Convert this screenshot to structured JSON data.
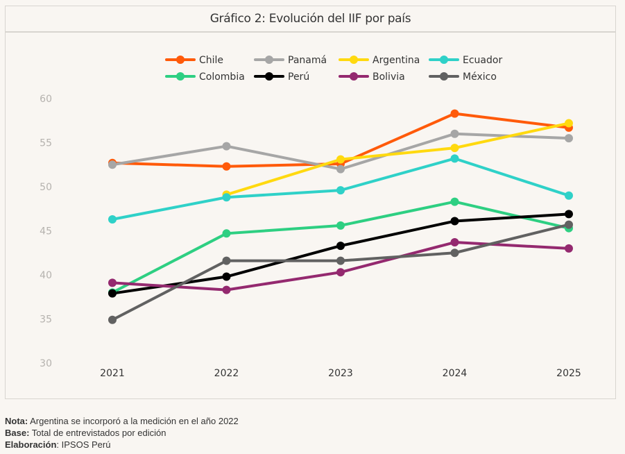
{
  "chart_data": {
    "type": "line",
    "title": "Gráfico 2: Evolución del IIF por país",
    "xlabel": "",
    "ylabel": "",
    "x": [
      "2021",
      "2022",
      "2023",
      "2024",
      "2025"
    ],
    "ylim": [
      30,
      60
    ],
    "yticks": [
      30,
      35,
      40,
      45,
      50,
      55,
      60
    ],
    "grid": false,
    "legend_position": "top-center",
    "series": [
      {
        "name": "Chile",
        "color": "#ff5a0a",
        "values": [
          52.7,
          52.3,
          52.6,
          58.3,
          56.7
        ]
      },
      {
        "name": "Panamá",
        "color": "#a6a6a6",
        "values": [
          52.5,
          54.6,
          52.0,
          56.0,
          55.5
        ]
      },
      {
        "name": "Argentina",
        "color": "#ffd90f",
        "values": [
          null,
          49.1,
          53.1,
          54.4,
          57.2
        ]
      },
      {
        "name": "Ecuador",
        "color": "#2fd1c8",
        "values": [
          46.3,
          48.8,
          49.6,
          53.2,
          49.0
        ]
      },
      {
        "name": "Colombia",
        "color": "#2ecf82",
        "values": [
          38.0,
          44.7,
          45.6,
          48.3,
          45.3
        ]
      },
      {
        "name": "Perú",
        "color": "#000000",
        "values": [
          37.9,
          39.8,
          43.3,
          46.1,
          46.9
        ]
      },
      {
        "name": "Bolivia",
        "color": "#94296f",
        "values": [
          39.1,
          38.3,
          40.3,
          43.7,
          43.0
        ]
      },
      {
        "name": "México",
        "color": "#616161",
        "values": [
          34.9,
          41.6,
          41.6,
          42.5,
          45.7
        ]
      }
    ]
  },
  "notes": {
    "nota_label": "Nota:",
    "nota_text": " Argentina se incorporó a la medición en el año 2022",
    "base_label": "Base:",
    "base_text": " Total de entrevistados por edición",
    "elab_label": "Elaboración",
    "elab_text": ": IPSOS Perú"
  }
}
